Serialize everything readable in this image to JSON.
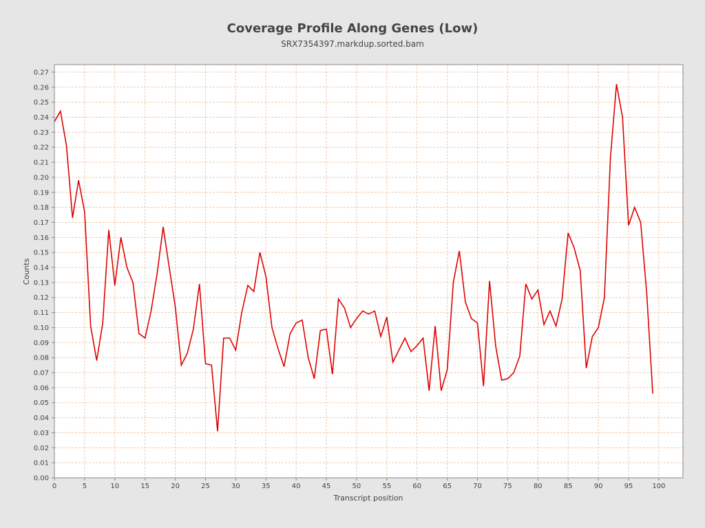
{
  "chart_data": {
    "type": "line",
    "title": "Coverage Profile Along Genes (Low)",
    "subtitle": "SRX7354397.markdup.sorted.bam",
    "xlabel": "Transcript position",
    "ylabel": "Counts",
    "xlim": [
      0,
      104
    ],
    "ylim": [
      0,
      0.275
    ],
    "xticks": [
      0,
      5,
      10,
      15,
      20,
      25,
      30,
      35,
      40,
      45,
      50,
      55,
      60,
      65,
      70,
      75,
      80,
      85,
      90,
      95,
      100
    ],
    "yticks": [
      0,
      0.01,
      0.02,
      0.03,
      0.04,
      0.05,
      0.06,
      0.07,
      0.08,
      0.09,
      0.1,
      0.11,
      0.12,
      0.13,
      0.14,
      0.15,
      0.16,
      0.17,
      0.18,
      0.19,
      0.2,
      0.21,
      0.22,
      0.23,
      0.24,
      0.25,
      0.26,
      0.27
    ],
    "grid": true,
    "colors": {
      "line": "#dd0000",
      "grid": "#f0c8a8",
      "plot_bg": "#ffffff",
      "axis": "#888888"
    },
    "series": [
      {
        "x": [
          0,
          1,
          2,
          3,
          4,
          5,
          6,
          7,
          8,
          9,
          10,
          11,
          12,
          13,
          14,
          15,
          16,
          17,
          18,
          19,
          20,
          21,
          22,
          23,
          24,
          25,
          26,
          27,
          28,
          29,
          30,
          31,
          32,
          33,
          34,
          35,
          36,
          37,
          38,
          39,
          40,
          41,
          42,
          43,
          44,
          45,
          46,
          47,
          48,
          49,
          50,
          51,
          52,
          53,
          54,
          55,
          56,
          57,
          58,
          59,
          60,
          61,
          62,
          63,
          64,
          65,
          66,
          67,
          68,
          69,
          70,
          71,
          72,
          73,
          74,
          75,
          76,
          77,
          78,
          79,
          80,
          81,
          82,
          83,
          84,
          85,
          86,
          87,
          88,
          89,
          90,
          91,
          92,
          93,
          94,
          95,
          96,
          97,
          98,
          99
        ],
        "values": [
          0.237,
          0.244,
          0.221,
          0.173,
          0.198,
          0.177,
          0.101,
          0.078,
          0.103,
          0.165,
          0.128,
          0.16,
          0.14,
          0.13,
          0.096,
          0.093,
          0.111,
          0.136,
          0.167,
          0.14,
          0.114,
          0.075,
          0.083,
          0.099,
          0.129,
          0.076,
          0.075,
          0.031,
          0.093,
          0.093,
          0.085,
          0.11,
          0.128,
          0.124,
          0.15,
          0.134,
          0.1,
          0.086,
          0.074,
          0.096,
          0.103,
          0.105,
          0.08,
          0.066,
          0.098,
          0.099,
          0.069,
          0.119,
          0.113,
          0.1,
          0.106,
          0.111,
          0.109,
          0.111,
          0.094,
          0.107,
          0.077,
          0.085,
          0.093,
          0.084,
          0.088,
          0.093,
          0.058,
          0.101,
          0.058,
          0.072,
          0.13,
          0.151,
          0.117,
          0.106,
          0.103,
          0.061,
          0.131,
          0.088,
          0.065,
          0.066,
          0.07,
          0.081,
          0.129,
          0.119,
          0.125,
          0.102,
          0.111,
          0.101,
          0.119,
          0.163,
          0.153,
          0.138,
          0.073,
          0.094,
          0.1,
          0.12,
          0.213,
          0.262,
          0.24,
          0.168,
          0.18,
          0.17,
          0.123,
          0.056
        ]
      }
    ]
  }
}
